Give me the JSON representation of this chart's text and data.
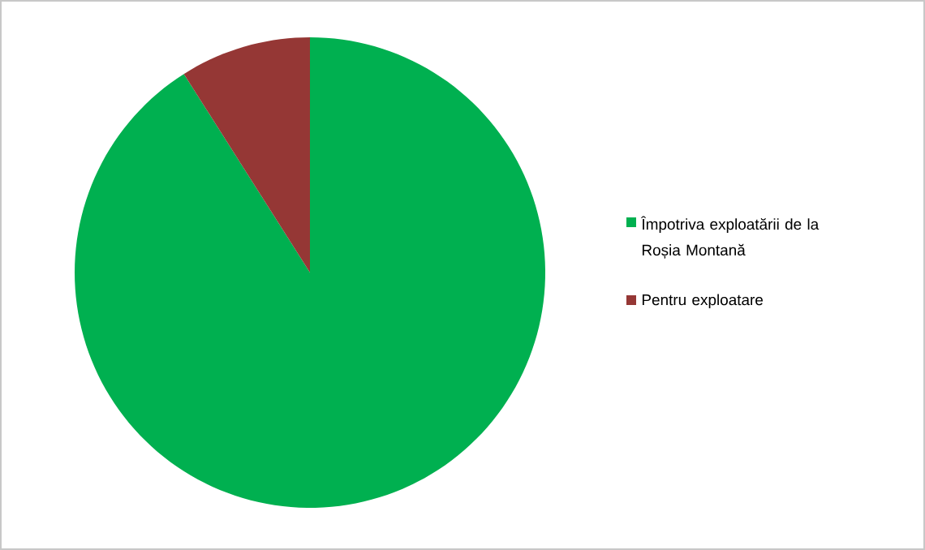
{
  "chart_data": {
    "type": "pie",
    "categories": [
      "Împotriva exploatării de la Roșia Montană",
      "Pentru exploatare"
    ],
    "values": [
      91,
      9
    ],
    "colors": [
      "#00b050",
      "#953735"
    ],
    "legend": "right"
  }
}
